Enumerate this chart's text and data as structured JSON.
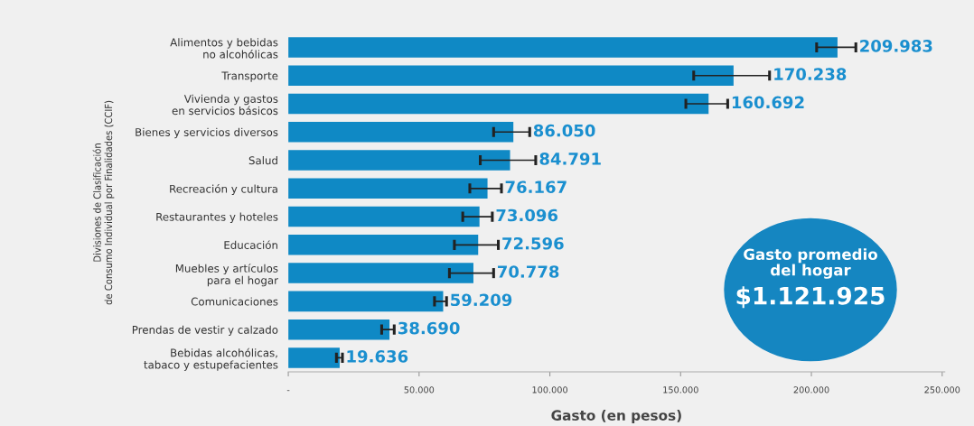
{
  "chart_data": {
    "type": "bar",
    "orientation": "horizontal",
    "xlabel": "Gasto (en pesos)",
    "ylabel": "Divisiones de Clasificación\nde Consumo Individual por Finalidades (CCIF)",
    "categories": [
      "Alimentos y bebidas\nno alcohólicas",
      "Transporte",
      "Vivienda y gastos\nen servicios básicos",
      "Bienes y servicios diversos",
      "Salud",
      "Recreación y cultura",
      "Restaurantes y hoteles",
      "Educación",
      "Muebles y artículos\npara el hogar",
      "Comunicaciones",
      "Prendas de vestir y calzado",
      "Bebidas alcohólicas,\ntabaco y estupefacientes"
    ],
    "values": [
      209983,
      170238,
      160692,
      86050,
      84791,
      76167,
      73096,
      72596,
      70778,
      59209,
      38690,
      19636
    ],
    "value_labels": [
      "209.983",
      "170.238",
      "160.692",
      "86.050",
      "84.791",
      "76.167",
      "73.096",
      "72.596",
      "70.778",
      "59.209",
      "38.690",
      "19.636"
    ],
    "errors": [
      [
        202000,
        217000
      ],
      [
        155000,
        184000
      ],
      [
        152000,
        168000
      ],
      [
        78500,
        92300
      ],
      [
        73400,
        94600
      ],
      [
        69400,
        81500
      ],
      [
        66700,
        78000
      ],
      [
        63500,
        80300
      ],
      [
        61600,
        78500
      ],
      [
        55900,
        60500
      ],
      [
        35700,
        40500
      ],
      [
        18400,
        20700
      ]
    ],
    "color": "#0f89c5",
    "xlim": [
      0,
      251000
    ],
    "xticks": [
      {
        "value": 0,
        "label": "-"
      },
      {
        "value": 50000,
        "label": "50.000"
      },
      {
        "value": 100000,
        "label": "100.000"
      },
      {
        "value": 150000,
        "label": "150.000"
      },
      {
        "value": 200000,
        "label": "200.000"
      },
      {
        "value": 250000,
        "label": "250.000"
      }
    ],
    "grid": false,
    "legend": false,
    "annotations": [
      "Gasto promedio\ndel hogar",
      "$1.121.925"
    ]
  }
}
